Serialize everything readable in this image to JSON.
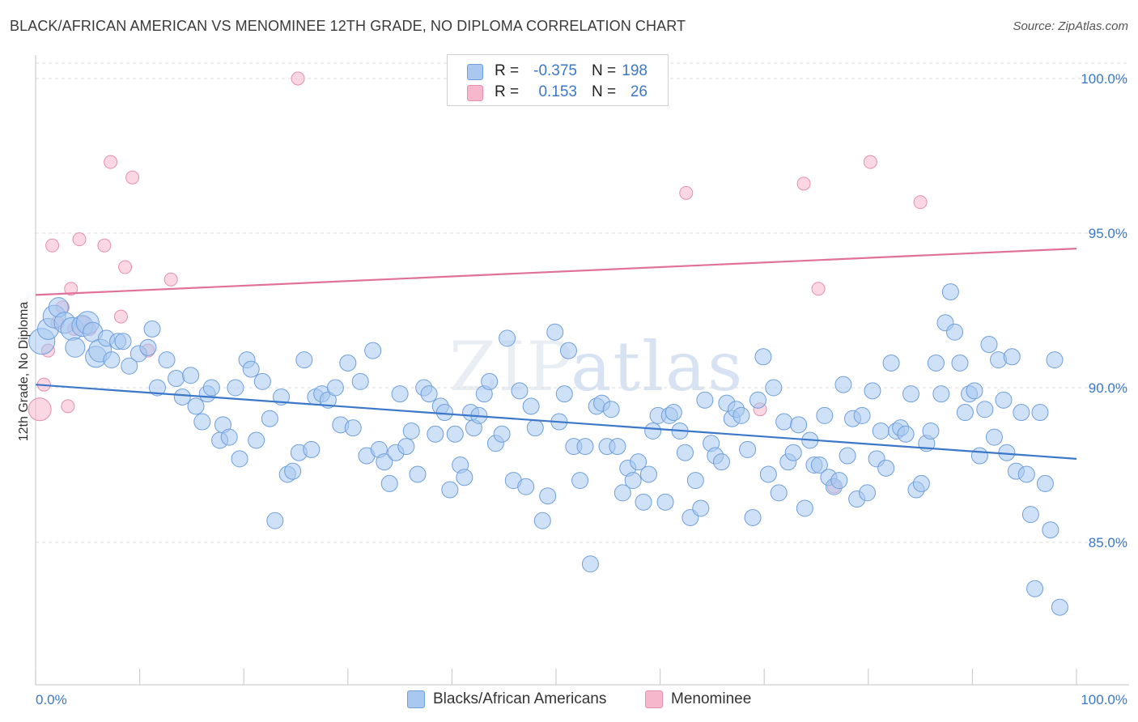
{
  "header": {
    "title": "BLACK/AFRICAN AMERICAN VS MENOMINEE 12TH GRADE, NO DIPLOMA CORRELATION CHART",
    "source": "Source: ZipAtlas.com"
  },
  "watermark": {
    "part1": "ZIP",
    "part2": "atlas"
  },
  "legend": {
    "rows": [
      {
        "r_label": "R =",
        "r_value": "-0.375",
        "n_label": "N =",
        "n_value": "198",
        "color": "#a8c8f0"
      },
      {
        "r_label": "R =",
        "r_value": "0.153",
        "n_label": "N =",
        "n_value": "26",
        "color": "#f6b6cb"
      }
    ]
  },
  "bottom_legend": {
    "items": [
      {
        "label": "Blacks/African Americans",
        "color": "#a8c8f0"
      },
      {
        "label": "Menominee",
        "color": "#f6b6cb"
      }
    ]
  },
  "chart_data": {
    "type": "scatter",
    "ylabel": "12th Grade, No Diploma",
    "xlabel": "",
    "xlim": [
      0,
      100
    ],
    "ylim": [
      81,
      101
    ],
    "x_ticks": [
      "0.0%",
      "100.0%"
    ],
    "y_ticks": [
      {
        "value": 100,
        "label": "100.0%"
      },
      {
        "value": 95,
        "label": "95.0%"
      },
      {
        "value": 90,
        "label": "90.0%"
      },
      {
        "value": 85,
        "label": "85.0%"
      }
    ],
    "grid": true,
    "colors": {
      "blue": "#3b78c9",
      "blue_fill": "#a8c8f0",
      "pink": "#e0729a",
      "pink_fill": "#f6b6cb"
    },
    "series": [
      {
        "name": "Blacks/African Americans",
        "color": "#3b78c9",
        "trend": [
          [
            0,
            90.1
          ],
          [
            100,
            87.7
          ]
        ],
        "points": [
          [
            0.6,
            91.5
          ],
          [
            1.2,
            91.9
          ],
          [
            1.8,
            92.3
          ],
          [
            2.2,
            92.6
          ],
          [
            2.8,
            92.1
          ],
          [
            3.5,
            91.9
          ],
          [
            3.8,
            91.3
          ],
          [
            4.5,
            92.0
          ],
          [
            5.0,
            92.1
          ],
          [
            5.5,
            91.8
          ],
          [
            5.8,
            91.0
          ],
          [
            6.2,
            91.2
          ],
          [
            6.8,
            91.6
          ],
          [
            7.3,
            90.9
          ],
          [
            7.9,
            91.5
          ],
          [
            8.4,
            91.5
          ],
          [
            9.0,
            90.7
          ],
          [
            9.9,
            91.1
          ],
          [
            10.8,
            91.3
          ],
          [
            11.2,
            91.9
          ],
          [
            11.7,
            90.0
          ],
          [
            12.6,
            90.9
          ],
          [
            13.5,
            90.3
          ],
          [
            14.1,
            89.7
          ],
          [
            14.9,
            90.4
          ],
          [
            15.4,
            89.4
          ],
          [
            16.0,
            88.9
          ],
          [
            16.5,
            89.8
          ],
          [
            16.9,
            90.0
          ],
          [
            17.7,
            88.3
          ],
          [
            18.0,
            88.8
          ],
          [
            18.6,
            88.4
          ],
          [
            19.2,
            90.0
          ],
          [
            19.6,
            87.7
          ],
          [
            20.3,
            90.9
          ],
          [
            20.7,
            90.6
          ],
          [
            21.2,
            88.3
          ],
          [
            21.8,
            90.2
          ],
          [
            22.5,
            89.0
          ],
          [
            23.0,
            85.7
          ],
          [
            23.6,
            89.7
          ],
          [
            24.2,
            87.2
          ],
          [
            24.7,
            87.3
          ],
          [
            25.3,
            87.9
          ],
          [
            25.8,
            90.9
          ],
          [
            26.5,
            88.0
          ],
          [
            26.9,
            89.7
          ],
          [
            27.5,
            89.8
          ],
          [
            28.1,
            89.6
          ],
          [
            28.8,
            90.0
          ],
          [
            29.3,
            88.8
          ],
          [
            30.0,
            90.8
          ],
          [
            30.5,
            88.7
          ],
          [
            31.2,
            90.2
          ],
          [
            31.8,
            87.8
          ],
          [
            32.4,
            91.2
          ],
          [
            33.0,
            88.0
          ],
          [
            33.5,
            87.6
          ],
          [
            34.0,
            86.9
          ],
          [
            34.6,
            87.9
          ],
          [
            35.0,
            89.8
          ],
          [
            35.6,
            88.1
          ],
          [
            36.1,
            88.6
          ],
          [
            36.7,
            87.2
          ],
          [
            37.3,
            90.0
          ],
          [
            37.8,
            89.8
          ],
          [
            38.4,
            88.5
          ],
          [
            38.9,
            89.4
          ],
          [
            39.3,
            89.2
          ],
          [
            39.8,
            86.7
          ],
          [
            40.3,
            88.5
          ],
          [
            40.8,
            87.5
          ],
          [
            41.2,
            87.1
          ],
          [
            41.8,
            89.2
          ],
          [
            42.1,
            88.7
          ],
          [
            42.6,
            89.1
          ],
          [
            43.1,
            89.8
          ],
          [
            43.6,
            90.2
          ],
          [
            44.2,
            88.2
          ],
          [
            44.8,
            88.5
          ],
          [
            45.3,
            91.6
          ],
          [
            45.9,
            87.0
          ],
          [
            46.5,
            89.9
          ],
          [
            47.1,
            86.8
          ],
          [
            47.6,
            89.4
          ],
          [
            48.0,
            88.7
          ],
          [
            48.7,
            85.7
          ],
          [
            49.2,
            86.5
          ],
          [
            49.9,
            91.8
          ],
          [
            50.3,
            88.9
          ],
          [
            50.8,
            89.8
          ],
          [
            51.2,
            91.2
          ],
          [
            51.7,
            88.1
          ],
          [
            52.3,
            87.0
          ],
          [
            52.8,
            88.1
          ],
          [
            53.3,
            84.3
          ],
          [
            53.9,
            89.4
          ],
          [
            54.4,
            89.5
          ],
          [
            54.9,
            88.1
          ],
          [
            55.3,
            89.3
          ],
          [
            55.9,
            88.1
          ],
          [
            56.4,
            86.6
          ],
          [
            56.9,
            87.4
          ],
          [
            57.4,
            87.0
          ],
          [
            57.9,
            87.6
          ],
          [
            58.4,
            86.3
          ],
          [
            58.9,
            87.2
          ],
          [
            59.3,
            88.6
          ],
          [
            59.8,
            89.1
          ],
          [
            60.5,
            86.3
          ],
          [
            60.9,
            89.1
          ],
          [
            61.3,
            89.2
          ],
          [
            61.9,
            88.6
          ],
          [
            62.4,
            87.9
          ],
          [
            62.9,
            85.8
          ],
          [
            63.4,
            87.0
          ],
          [
            63.9,
            86.1
          ],
          [
            64.3,
            89.6
          ],
          [
            64.9,
            88.2
          ],
          [
            65.3,
            87.8
          ],
          [
            65.9,
            87.6
          ],
          [
            66.4,
            89.5
          ],
          [
            66.9,
            89.0
          ],
          [
            67.3,
            89.3
          ],
          [
            67.8,
            89.1
          ],
          [
            68.4,
            88.0
          ],
          [
            68.9,
            85.8
          ],
          [
            69.4,
            89.6
          ],
          [
            69.9,
            91.0
          ],
          [
            70.4,
            87.2
          ],
          [
            70.9,
            90.0
          ],
          [
            71.4,
            86.6
          ],
          [
            71.9,
            88.9
          ],
          [
            72.3,
            87.6
          ],
          [
            72.8,
            87.9
          ],
          [
            73.3,
            88.8
          ],
          [
            73.9,
            86.1
          ],
          [
            74.4,
            88.3
          ],
          [
            74.8,
            87.5
          ],
          [
            75.3,
            87.5
          ],
          [
            75.8,
            89.1
          ],
          [
            76.2,
            87.1
          ],
          [
            76.7,
            86.8
          ],
          [
            77.2,
            87.0
          ],
          [
            77.6,
            90.1
          ],
          [
            78.0,
            87.8
          ],
          [
            78.5,
            89.0
          ],
          [
            78.9,
            86.4
          ],
          [
            79.4,
            89.1
          ],
          [
            79.9,
            86.6
          ],
          [
            80.4,
            89.9
          ],
          [
            80.8,
            87.7
          ],
          [
            81.2,
            88.6
          ],
          [
            81.7,
            87.4
          ],
          [
            82.2,
            90.8
          ],
          [
            82.7,
            88.6
          ],
          [
            83.1,
            88.7
          ],
          [
            83.6,
            88.5
          ],
          [
            84.1,
            89.8
          ],
          [
            84.6,
            86.7
          ],
          [
            85.1,
            86.9
          ],
          [
            85.6,
            88.2
          ],
          [
            86.0,
            88.6
          ],
          [
            86.5,
            90.8
          ],
          [
            87.0,
            89.8
          ],
          [
            87.4,
            92.1
          ],
          [
            87.9,
            93.1
          ],
          [
            88.3,
            91.8
          ],
          [
            88.8,
            90.8
          ],
          [
            89.3,
            89.2
          ],
          [
            89.7,
            89.8
          ],
          [
            90.2,
            89.9
          ],
          [
            90.7,
            87.8
          ],
          [
            91.2,
            89.3
          ],
          [
            91.6,
            91.4
          ],
          [
            92.1,
            88.4
          ],
          [
            92.5,
            90.9
          ],
          [
            93.0,
            89.6
          ],
          [
            93.3,
            87.9
          ],
          [
            93.8,
            91.0
          ],
          [
            94.2,
            87.3
          ],
          [
            94.7,
            89.2
          ],
          [
            95.2,
            87.2
          ],
          [
            95.6,
            85.9
          ],
          [
            96.0,
            83.5
          ],
          [
            96.5,
            89.2
          ],
          [
            97.0,
            86.9
          ],
          [
            97.5,
            85.4
          ],
          [
            97.9,
            90.9
          ],
          [
            98.4,
            82.9
          ]
        ]
      },
      {
        "name": "Menominee",
        "color": "#e0729a",
        "trend": [
          [
            0,
            93.0
          ],
          [
            100,
            94.5
          ]
        ],
        "points": [
          [
            0.4,
            89.3
          ],
          [
            0.8,
            90.1
          ],
          [
            1.2,
            91.2
          ],
          [
            1.6,
            94.6
          ],
          [
            2.1,
            92.1
          ],
          [
            2.6,
            92.6
          ],
          [
            3.1,
            89.4
          ],
          [
            3.4,
            93.2
          ],
          [
            3.7,
            91.9
          ],
          [
            4.2,
            94.8
          ],
          [
            4.6,
            92.1
          ],
          [
            5.2,
            91.9
          ],
          [
            6.6,
            94.6
          ],
          [
            7.2,
            97.3
          ],
          [
            8.2,
            92.3
          ],
          [
            8.6,
            93.9
          ],
          [
            9.3,
            96.8
          ],
          [
            10.8,
            91.2
          ],
          [
            13.0,
            93.5
          ],
          [
            25.2,
            100.0
          ],
          [
            62.5,
            96.3
          ],
          [
            69.6,
            89.3
          ],
          [
            73.8,
            96.6
          ],
          [
            75.2,
            93.2
          ],
          [
            76.7,
            86.8
          ],
          [
            80.2,
            97.3
          ]
        ],
        "extra_points": [
          [
            85.0,
            96.0
          ]
        ]
      }
    ]
  }
}
